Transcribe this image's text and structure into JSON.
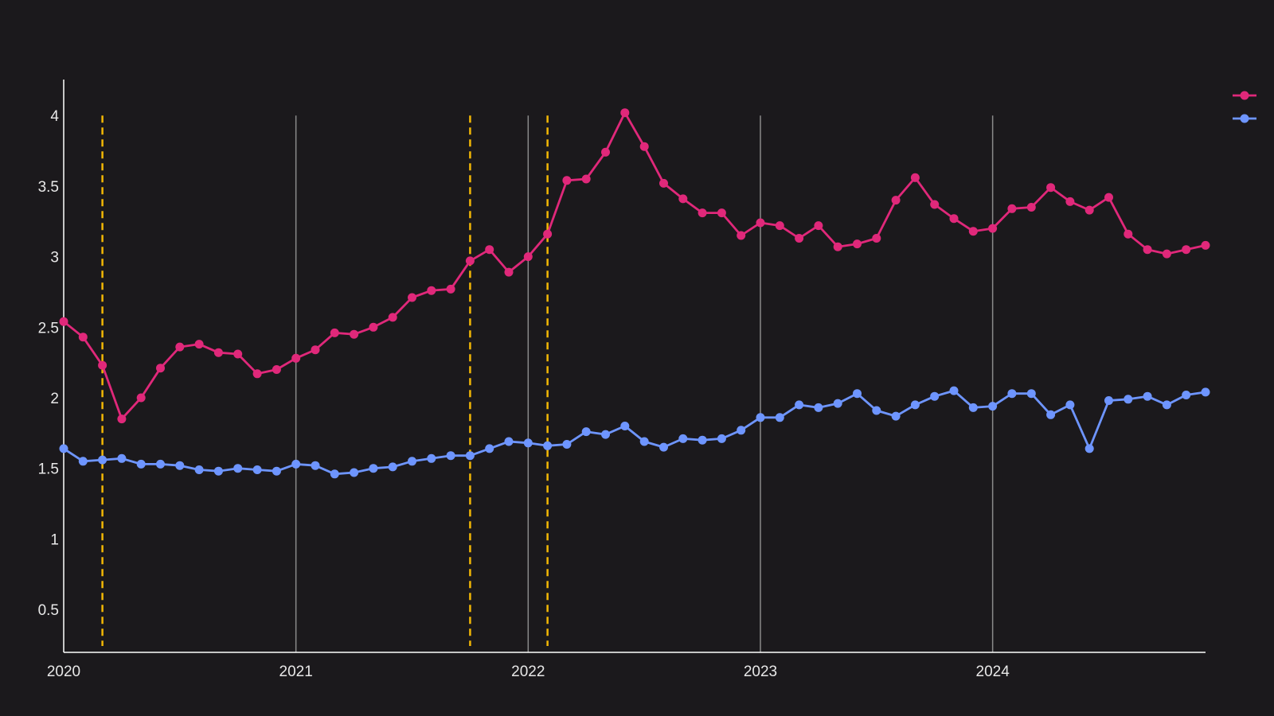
{
  "chart_data": {
    "type": "line",
    "title": "",
    "xlabel": "",
    "ylabel": "",
    "x_start": "2020-01",
    "x_end": "2024-12",
    "xlim": [
      "2020-01",
      "2024-12"
    ],
    "ylim": [
      0.2,
      4.25
    ],
    "x_ticks": [
      "2020",
      "2021",
      "2022",
      "2023",
      "2024"
    ],
    "y_ticks": [
      "0.5",
      "1",
      "1.5",
      "2",
      "2.5",
      "3",
      "3.5",
      "4"
    ],
    "grid": "vertical lines at year boundaries",
    "legend": "top-right",
    "background": "#1b191c",
    "axis_color": "#ffffff",
    "grid_color": "#8a8a8a",
    "marker_color": "#f2b705",
    "vertical_markers": [
      "2020-03",
      "2021-10",
      "2022-02"
    ],
    "x": [
      "2020-01",
      "2020-02",
      "2020-03",
      "2020-04",
      "2020-05",
      "2020-06",
      "2020-07",
      "2020-08",
      "2020-09",
      "2020-10",
      "2020-11",
      "2020-12",
      "2021-01",
      "2021-02",
      "2021-03",
      "2021-04",
      "2021-05",
      "2021-06",
      "2021-07",
      "2021-08",
      "2021-09",
      "2021-10",
      "2021-11",
      "2021-12",
      "2022-01",
      "2022-02",
      "2022-03",
      "2022-04",
      "2022-05",
      "2022-06",
      "2022-07",
      "2022-08",
      "2022-09",
      "2022-10",
      "2022-11",
      "2022-12",
      "2023-01",
      "2023-02",
      "2023-03",
      "2023-04",
      "2023-05",
      "2023-06",
      "2023-07",
      "2023-08",
      "2023-09",
      "2023-10",
      "2023-11",
      "2023-12",
      "2024-01",
      "2024-02",
      "2024-03",
      "2024-04",
      "2024-05",
      "2024-06",
      "2024-07",
      "2024-08",
      "2024-09",
      "2024-10",
      "2024-11",
      "2024-12"
    ],
    "series": [
      {
        "color": "#e0287a",
        "values": [
          2.54,
          2.43,
          2.23,
          1.85,
          2.0,
          2.21,
          2.36,
          2.38,
          2.32,
          2.31,
          2.17,
          2.2,
          2.28,
          2.34,
          2.46,
          2.45,
          2.5,
          2.57,
          2.71,
          2.76,
          2.77,
          2.97,
          3.05,
          2.89,
          3.0,
          3.16,
          3.54,
          3.55,
          3.74,
          4.02,
          3.78,
          3.52,
          3.41,
          3.31,
          3.31,
          3.15,
          3.24,
          3.22,
          3.13,
          3.22,
          3.07,
          3.09,
          3.13,
          3.4,
          3.56,
          3.37,
          3.27,
          3.18,
          3.2,
          3.34,
          3.35,
          3.49,
          3.39,
          3.33,
          3.42,
          3.16,
          3.05,
          3.02,
          3.05,
          3.08
        ]
      },
      {
        "color": "#6e95ff",
        "values": [
          1.64,
          1.55,
          1.56,
          1.57,
          1.53,
          1.53,
          1.52,
          1.49,
          1.48,
          1.5,
          1.49,
          1.48,
          1.53,
          1.52,
          1.46,
          1.47,
          1.5,
          1.51,
          1.55,
          1.57,
          1.59,
          1.59,
          1.64,
          1.69,
          1.68,
          1.66,
          1.67,
          1.76,
          1.74,
          1.8,
          1.69,
          1.65,
          1.71,
          1.7,
          1.71,
          1.77,
          1.86,
          1.86,
          1.95,
          1.93,
          1.96,
          2.03,
          1.91,
          1.87,
          1.95,
          2.01,
          2.05,
          1.93,
          1.94,
          2.03,
          2.03,
          1.88,
          1.95,
          1.64,
          1.98,
          1.99,
          2.01,
          1.95,
          2.02,
          2.04
        ]
      }
    ]
  }
}
